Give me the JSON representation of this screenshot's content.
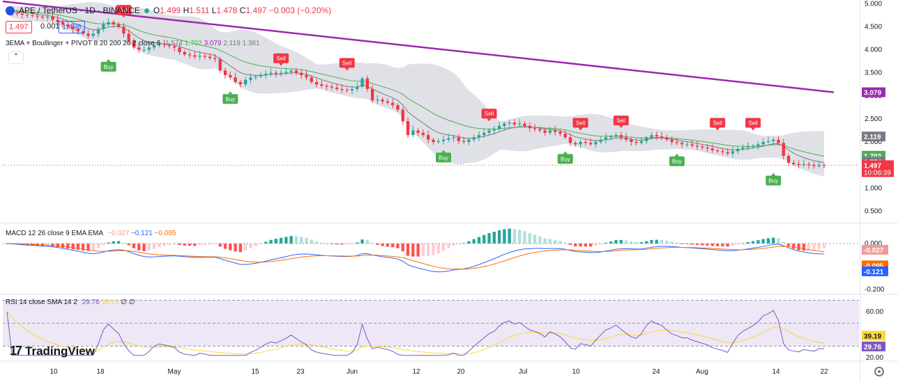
{
  "header": {
    "symbol": "APE / TetherUS · 1D · BINANCE",
    "o_label": "O",
    "o": "1.499",
    "h_label": "H",
    "h": "1.511",
    "l_label": "L",
    "l": "1.478",
    "c_label": "C",
    "c": "1.497",
    "change": "−0.003 (−0.20%)"
  },
  "price_boxes": {
    "bid": "1.497",
    "spread": "0.001",
    "ask": "1.498"
  },
  "indicators": {
    "ema_legend": "3EMA + Boullinger + PIVOT 8 20 200 20 2 close 6",
    "ema_values": [
      "1.574",
      "1.702",
      "3.079",
      "2.119",
      "1.381"
    ],
    "macd_legend": "MACD 12 26 close 9 EMA EMA",
    "macd_values": [
      "−0.027",
      "−0.121",
      "−0.095"
    ],
    "rsi_legend": "RSI 14 close SMA 14 2",
    "rsi_values": [
      "29.76",
      "39.19",
      "∅",
      "∅"
    ]
  },
  "branding": {
    "logo_text": "TradingView"
  },
  "colors": {
    "up": "#26a69a",
    "down": "#f23645",
    "ema_fast": "#787b86",
    "ema_mid": "#4caf50",
    "ema_slow": "#9c27b0",
    "bb_fill": "#d1d4dc",
    "macd_line": "#2962ff",
    "signal_line": "#ff6d00",
    "rsi_line": "#7e57c2",
    "rsi_sma": "#fdd835"
  },
  "chart_data": {
    "type": "candlestick",
    "main_axis": {
      "ticks": [
        "5.000",
        "4.500",
        "4.000",
        "3.500",
        "3.000",
        "2.500",
        "2.000",
        "1.500",
        "1.000",
        "0.500"
      ],
      "range": [
        0.25,
        5.0
      ]
    },
    "macd_axis": {
      "ticks": [
        "0.000",
        "-0.200"
      ]
    },
    "rsi_axis": {
      "ticks": [
        "60.00",
        "20.00"
      ]
    },
    "x_axis": {
      "labels": [
        "10",
        "18",
        "May",
        "15",
        "23",
        "Jun",
        "12",
        "20",
        "Jul",
        "10",
        "24",
        "Aug",
        "14",
        "22"
      ]
    },
    "last_price": "1.497",
    "countdown": "10:06:39",
    "price_tags": [
      {
        "value": "3.079",
        "label": "3.079",
        "color": "#9c27b0"
      },
      {
        "value": "2.119",
        "label": "2.119",
        "color": "#787b86"
      },
      {
        "value": "1.702",
        "label": "1.702",
        "color": "#4caf50"
      },
      {
        "value": "1.574",
        "label": "1.574",
        "color": "#787b86"
      },
      {
        "value": "1.381",
        "label": "1.381",
        "color": "#787b86"
      }
    ],
    "macd_tags": [
      {
        "value": -0.027,
        "label": "-0.027",
        "color": "#ef9a9a"
      },
      {
        "value": -0.095,
        "label": "-0.095",
        "color": "#ff6d00"
      },
      {
        "value": -0.121,
        "label": "-0.121",
        "color": "#2962ff"
      }
    ],
    "rsi_tags": [
      {
        "value": 39.19,
        "label": "39.19",
        "color": "#fdd835"
      },
      {
        "value": 29.76,
        "label": "29.76",
        "color": "#7e57c2"
      }
    ],
    "close": [
      4.85,
      4.8,
      4.78,
      4.76,
      4.75,
      4.74,
      4.72,
      4.7,
      4.72,
      4.65,
      4.6,
      4.55,
      4.5,
      4.45,
      4.4,
      4.35,
      4.3,
      4.35,
      4.45,
      4.55,
      4.6,
      4.55,
      4.5,
      4.35,
      4.2,
      4.05,
      4.0,
      4.0,
      4.05,
      4.1,
      4.12,
      4.1,
      4.08,
      4.05,
      3.95,
      3.9,
      3.88,
      3.85,
      3.87,
      3.85,
      3.82,
      3.8,
      3.55,
      3.45,
      3.4,
      3.3,
      3.25,
      3.35,
      3.4,
      3.42,
      3.45,
      3.48,
      3.5,
      3.48,
      3.5,
      3.52,
      3.55,
      3.5,
      3.45,
      3.4,
      3.3,
      3.25,
      3.22,
      3.2,
      3.18,
      3.15,
      3.13,
      3.12,
      3.15,
      3.2,
      3.38,
      3.15,
      2.9,
      2.92,
      2.88,
      2.85,
      2.8,
      2.7,
      2.45,
      2.15,
      2.25,
      2.2,
      2.15,
      2.05,
      2.0,
      2.02,
      2.05,
      2.08,
      2.1,
      2.02,
      2.0,
      2.05,
      2.1,
      2.15,
      2.2,
      2.25,
      2.28,
      2.35,
      2.4,
      2.42,
      2.38,
      2.4,
      2.35,
      2.3,
      2.28,
      2.25,
      2.2,
      2.25,
      2.22,
      2.18,
      2.1,
      1.98,
      1.95,
      2.0,
      1.98,
      1.95,
      2.0,
      2.05,
      2.1,
      2.12,
      2.15,
      2.1,
      2.05,
      2.0,
      1.98,
      2.02,
      2.1,
      2.15,
      2.12,
      2.1,
      2.05,
      2.0,
      1.98,
      1.95,
      1.95,
      1.92,
      1.9,
      1.88,
      1.86,
      1.82,
      1.8,
      1.78,
      1.75,
      1.8,
      1.85,
      1.88,
      1.9,
      1.92,
      1.95,
      2.0,
      2.02,
      2.05,
      1.98,
      1.7,
      1.55,
      1.52,
      1.5,
      1.52,
      1.5,
      1.48,
      1.5,
      1.497
    ],
    "signals": [
      {
        "type": "Sell",
        "bar": 23,
        "price": 4.55
      },
      {
        "type": "Buy",
        "bar": 20,
        "price": 3.95
      },
      {
        "type": "Buy",
        "bar": 44,
        "price": 3.25
      },
      {
        "type": "Sell",
        "bar": 54,
        "price": 3.5
      },
      {
        "type": "Sell",
        "bar": 67,
        "price": 3.4
      },
      {
        "type": "Buy",
        "bar": 86,
        "price": 1.98
      },
      {
        "type": "Sell",
        "bar": 95,
        "price": 2.3
      },
      {
        "type": "Sell",
        "bar": 113,
        "price": 2.1
      },
      {
        "type": "Buy",
        "bar": 110,
        "price": 1.95
      },
      {
        "type": "Sell",
        "bar": 121,
        "price": 2.15
      },
      {
        "type": "Buy",
        "bar": 132,
        "price": 1.9
      },
      {
        "type": "Sell",
        "bar": 140,
        "price": 2.1
      },
      {
        "type": "Sell",
        "bar": 147,
        "price": 2.1
      },
      {
        "type": "Buy",
        "bar": 151,
        "price": 1.48
      }
    ],
    "ema200": {
      "start": 5.05,
      "end": 3.079
    }
  }
}
